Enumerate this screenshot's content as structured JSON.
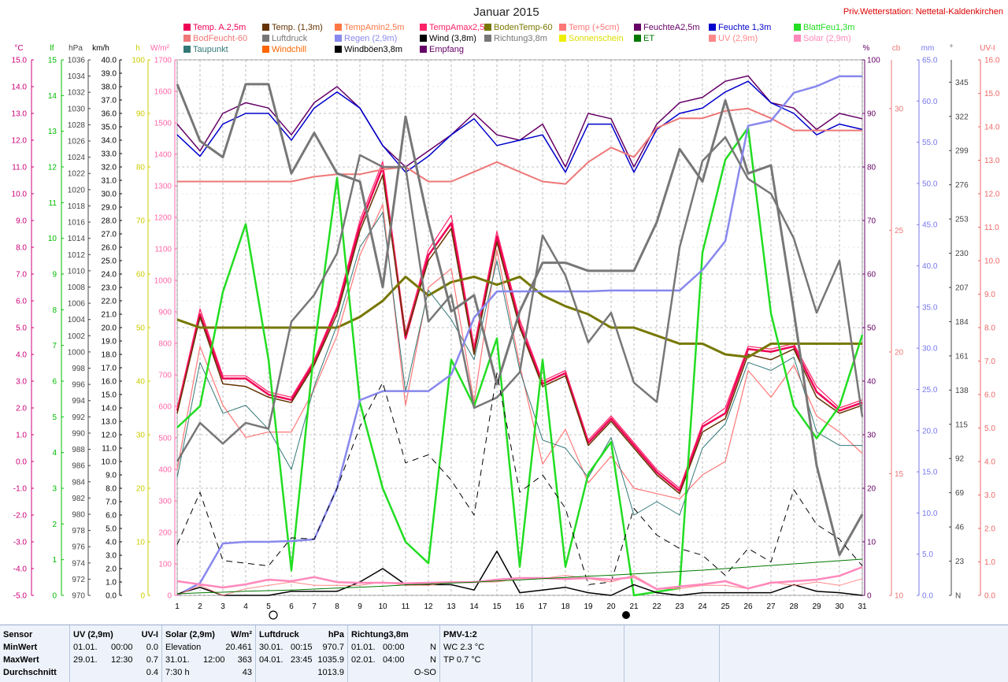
{
  "chart_data": {
    "type": "line",
    "title": "Januar 2015",
    "station": "Priv.Wetterstation: Nettetal-Kaldenkirchen",
    "x": [
      1,
      2,
      3,
      4,
      5,
      6,
      7,
      8,
      9,
      10,
      11,
      12,
      13,
      14,
      15,
      16,
      17,
      18,
      19,
      20,
      21,
      22,
      23,
      24,
      25,
      26,
      27,
      28,
      29,
      30,
      31
    ],
    "xlim": [
      1,
      31
    ],
    "axes": [
      {
        "id": "c",
        "unit": "°C",
        "color": "#cc0077",
        "min": -5,
        "max": 15,
        "ticks": [
          "-5.0",
          "-4.0",
          "-3.0",
          "-2.0",
          "-1.0",
          "0.0",
          "1.0",
          "2.0",
          "3.0",
          "4.0",
          "5.0",
          "6.0",
          "7.0",
          "8.0",
          "9.0",
          "10.0",
          "11.0",
          "12.0",
          "13.0",
          "14.0",
          "15.0"
        ]
      },
      {
        "id": "lf",
        "unit": "lf",
        "color": "#00bb00",
        "min": 0,
        "max": 15,
        "ticks": [
          "0",
          "1",
          "2",
          "3",
          "4",
          "5",
          "6",
          "7",
          "8",
          "9",
          "10",
          "11",
          "12",
          "13",
          "14",
          "15"
        ]
      },
      {
        "id": "hpa",
        "unit": "hPa",
        "color": "#444444",
        "min": 970,
        "max": 1036,
        "ticks": [
          "970",
          "972",
          "974",
          "976",
          "978",
          "980",
          "982",
          "984",
          "986",
          "988",
          "990",
          "992",
          "994",
          "996",
          "998",
          "1000",
          "1002",
          "1004",
          "1006",
          "1008",
          "1010",
          "1012",
          "1014",
          "1016",
          "1018",
          "1020",
          "1022",
          "1024",
          "1026",
          "1028",
          "1030",
          "1032",
          "1034",
          "1036"
        ]
      },
      {
        "id": "kmh",
        "unit": "km/h",
        "color": "#000000",
        "min": 0,
        "max": 40,
        "ticks": [
          "0.0",
          "1.0",
          "2.0",
          "3.0",
          "4.0",
          "5.0",
          "6.0",
          "7.0",
          "8.0",
          "9.0",
          "10.0",
          "11.0",
          "12.0",
          "13.0",
          "14.0",
          "15.0",
          "16.0",
          "17.0",
          "18.0",
          "19.0",
          "20.0",
          "21.0",
          "22.0",
          "23.0",
          "24.0",
          "25.0",
          "26.0",
          "27.0",
          "28.0",
          "29.0",
          "30.0",
          "31.0",
          "32.0",
          "33.0",
          "34.0",
          "35.0",
          "36.0",
          "37.0",
          "38.0",
          "39.0",
          "40.0"
        ]
      },
      {
        "id": "h",
        "unit": "h",
        "color": "#cccc00",
        "min": 0,
        "max": 100,
        "ticks": [
          "0",
          "10",
          "20",
          "30",
          "40",
          "50",
          "60",
          "70",
          "80",
          "90",
          "100"
        ]
      },
      {
        "id": "wm2",
        "unit": "W/m²",
        "color": "#ff66aa",
        "min": 0,
        "max": 1700,
        "ticks": [
          "0",
          "100",
          "200",
          "300",
          "400",
          "500",
          "600",
          "700",
          "800",
          "900",
          "1000",
          "1100",
          "1200",
          "1300",
          "1400",
          "1500",
          "1600",
          "1700"
        ]
      },
      {
        "id": "pct",
        "unit": "%",
        "color": "#660066",
        "min": 0,
        "max": 100,
        "ticks": [
          "0",
          "10",
          "20",
          "30",
          "40",
          "50",
          "60",
          "70",
          "80",
          "90",
          "100"
        ]
      },
      {
        "id": "cb",
        "unit": "cb",
        "color": "#ee7777",
        "min": 10,
        "max": 32,
        "ticks": [
          "10",
          "15",
          "20",
          "25",
          "30"
        ]
      },
      {
        "id": "mm",
        "unit": "mm",
        "color": "#7777ee",
        "min": 0,
        "max": 65,
        "ticks": [
          "0.0",
          "5.0",
          "10.0",
          "15.0",
          "20.0",
          "25.0",
          "30.0",
          "35.0",
          "40.0",
          "45.0",
          "50.0",
          "55.0",
          "60.0",
          "65.0"
        ]
      },
      {
        "id": "deg",
        "unit": "°",
        "color": "#444444",
        "min": 0,
        "max": 360,
        "ticks": [
          "N",
          "23",
          "46",
          "69",
          "92",
          "115",
          "138",
          "161",
          "184",
          "207",
          "230",
          "253",
          "276",
          "299",
          "322",
          "345"
        ]
      },
      {
        "id": "uv",
        "unit": "UV-I",
        "color": "#ee6666",
        "min": 0,
        "max": 16,
        "ticks": [
          "0.0",
          "1.0",
          "2.0",
          "3.0",
          "4.0",
          "5.0",
          "6.0",
          "7.0",
          "8.0",
          "9.0",
          "10.0",
          "11.0",
          "12.0",
          "13.0",
          "14.0",
          "15.0",
          "16.0"
        ]
      }
    ],
    "legend": [
      {
        "name": "Temp. A.2,5m",
        "color": "#ee0055"
      },
      {
        "name": "Temp. (1,3m)",
        "color": "#663300"
      },
      {
        "name": "TempAmin2,5m",
        "color": "#ff7744"
      },
      {
        "name": "TempAmax2,5m",
        "color": "#ff2266"
      },
      {
        "name": "BodenTemp-60",
        "color": "#777700"
      },
      {
        "name": "Temp (+5cm)",
        "color": "#ff7777"
      },
      {
        "name": "FeuchteA2,5m",
        "color": "#660066"
      },
      {
        "name": "Feuchte 1,3m",
        "color": "#0000cc"
      },
      {
        "name": "BlattFeu1,3m",
        "color": "#22dd22"
      },
      {
        "name": "BodFeucht-60",
        "color": "#ee7777"
      },
      {
        "name": "Luftdruck",
        "color": "#777777"
      },
      {
        "name": "Regen (2,9m)",
        "color": "#8888ee"
      },
      {
        "name": "Wind (3,8m)",
        "color": "#000000"
      },
      {
        "name": "Richtung3,8m",
        "color": "#777777"
      },
      {
        "name": "Sonnenschein",
        "color": "#eeee00"
      },
      {
        "name": "ET",
        "color": "#007700"
      },
      {
        "name": "UV (2,9m)",
        "color": "#ff8888"
      },
      {
        "name": "Solar (2,9m)",
        "color": "#ff88bb"
      },
      {
        "name": "Taupunkt",
        "color": "#337777"
      },
      {
        "name": "Windchill",
        "color": "#ff6600"
      },
      {
        "name": "Windböen3,8m",
        "color": "#000000"
      },
      {
        "name": "Empfang",
        "color": "#660066"
      }
    ],
    "series": [
      {
        "id": "tempA",
        "axis": "c",
        "color": "#ee0055",
        "width": 2.5,
        "values": [
          1.9,
          5.5,
          3.1,
          3.1,
          2.5,
          2.3,
          3.7,
          5.7,
          8.8,
          11.0,
          4.6,
          7.7,
          8.9,
          4.1,
          8.4,
          5.1,
          2.9,
          3.3,
          0.7,
          1.6,
          0.6,
          -0.4,
          -1.1,
          1.3,
          1.8,
          4.2,
          4.1,
          4.3,
          2.6,
          1.9,
          2.2
        ]
      },
      {
        "id": "tempAmax",
        "axis": "c",
        "color": "#ff2266",
        "width": 1.2,
        "values": [
          2.0,
          5.7,
          3.2,
          3.2,
          2.6,
          2.4,
          3.8,
          5.8,
          9.0,
          11.2,
          4.8,
          7.9,
          9.2,
          4.3,
          8.6,
          5.3,
          3.0,
          3.4,
          0.8,
          1.7,
          0.7,
          -0.3,
          -1.0,
          1.4,
          2.0,
          4.3,
          4.2,
          4.4,
          2.8,
          2.0,
          2.3
        ]
      },
      {
        "id": "temp13",
        "axis": "c",
        "color": "#663300",
        "width": 1.5,
        "values": [
          1.8,
          5.4,
          2.9,
          2.8,
          2.4,
          2.2,
          3.6,
          5.5,
          8.6,
          10.7,
          4.7,
          7.5,
          8.7,
          4.0,
          8.2,
          5.0,
          2.8,
          3.2,
          0.6,
          1.5,
          0.5,
          -0.5,
          -1.2,
          1.1,
          1.6,
          4.0,
          3.8,
          4.2,
          2.4,
          1.8,
          2.1
        ]
      },
      {
        "id": "bodenTemp",
        "axis": "c",
        "color": "#777700",
        "width": 3,
        "values": [
          5.3,
          5.0,
          5.0,
          5.0,
          5.0,
          5.0,
          5.0,
          5.0,
          5.4,
          6.0,
          6.9,
          6.2,
          6.7,
          6.9,
          6.6,
          6.9,
          6.2,
          5.8,
          5.5,
          5.0,
          5.0,
          4.7,
          4.4,
          4.4,
          4.0,
          3.9,
          4.4,
          4.4,
          4.4,
          4.4,
          4.4
        ]
      },
      {
        "id": "temp5cm",
        "axis": "c",
        "color": "#ff7777",
        "width": 1.2,
        "values": [
          -0.3,
          4.3,
          2.1,
          0.9,
          1.1,
          1.1,
          2.7,
          4.7,
          7.7,
          9.6,
          2.1,
          6.5,
          7.2,
          2.2,
          7.9,
          3.6,
          -0.1,
          1.2,
          -0.8,
          0.2,
          -1.0,
          -1.2,
          -1.4,
          -0.5,
          0.0,
          3.4,
          2.4,
          3.6,
          1.7,
          1.1,
          0.3
        ]
      },
      {
        "id": "taupunkt",
        "axis": "c",
        "color": "#337777",
        "width": 1,
        "values": [
          -0.6,
          3.7,
          1.8,
          2.1,
          1.2,
          -0.3,
          2.8,
          5.1,
          8.0,
          9.3,
          2.6,
          6.4,
          5.3,
          3.8,
          7.5,
          3.4,
          0.8,
          0.5,
          -0.6,
          0.9,
          -2.0,
          -1.5,
          -2.0,
          0.5,
          1.4,
          3.7,
          3.4,
          3.9,
          1.1,
          0.6,
          0.6
        ]
      },
      {
        "id": "feuchteA",
        "axis": "pct",
        "color": "#660066",
        "width": 1.5,
        "values": [
          88,
          83,
          90,
          92,
          91,
          86,
          92,
          95,
          91,
          84,
          80,
          83,
          86,
          90,
          86,
          85,
          88,
          80,
          90,
          89,
          80,
          88,
          92,
          93,
          96,
          97,
          92,
          91,
          87,
          90,
          89
        ]
      },
      {
        "id": "feuchte13",
        "axis": "pct",
        "color": "#0000cc",
        "width": 1.5,
        "values": [
          86,
          82,
          88,
          90,
          90,
          85,
          91,
          94,
          91,
          84,
          79,
          82,
          86,
          89,
          84,
          85,
          86,
          79,
          88,
          88,
          79,
          87,
          90,
          91,
          94,
          96,
          92,
          90,
          86,
          88,
          87
        ]
      },
      {
        "id": "blattFeu",
        "axis": "lf",
        "color": "#22dd22",
        "width": 2.5,
        "values": [
          4.7,
          5.3,
          8.5,
          10.4,
          6.6,
          0.7,
          6.9,
          11.7,
          5.4,
          3.0,
          1.5,
          0.9,
          6.6,
          5.3,
          7.2,
          0.8,
          6.6,
          0.8,
          3.4,
          4.3,
          0,
          0.1,
          0.2,
          9.6,
          12.2,
          13.1,
          7.9,
          5.3,
          4.4,
          5.3,
          7.3
        ]
      },
      {
        "id": "bodFeucht",
        "axis": "cb",
        "color": "#ee7777",
        "width": 2,
        "values": [
          27.0,
          27.0,
          27.0,
          27.0,
          27.0,
          27.0,
          27.2,
          27.3,
          27.3,
          27.5,
          27.6,
          27.0,
          27.0,
          27.4,
          27.8,
          27.4,
          27.0,
          26.9,
          27.8,
          28.4,
          28.0,
          29.2,
          29.6,
          29.6,
          29.9,
          30.0,
          29.6,
          29.1,
          29.1,
          29.1,
          29.1
        ]
      },
      {
        "id": "luftdruck",
        "axis": "hpa",
        "color": "#777777",
        "width": 3,
        "values": [
          1033,
          1026,
          1024,
          1033,
          1033,
          1022,
          1027,
          1022,
          1021,
          1008,
          1029,
          1016,
          1005,
          1007,
          996,
          1005,
          1011,
          1011,
          1010,
          1010,
          1010,
          1016,
          1025,
          1021,
          1031,
          1022,
          1023,
          1005,
          986,
          975,
          980
        ]
      },
      {
        "id": "regen",
        "axis": "mm",
        "color": "#8888ee",
        "width": 2.5,
        "values": [
          0.0,
          1.5,
          6.3,
          6.5,
          6.5,
          6.6,
          6.8,
          13.0,
          23.7,
          24.8,
          24.8,
          24.8,
          26.8,
          33.7,
          36.9,
          36.9,
          36.9,
          36.9,
          36.9,
          37.0,
          37.0,
          37.0,
          37.0,
          39.5,
          43.0,
          57.0,
          57.6,
          61.0,
          61.8,
          63.0,
          63.0
        ]
      },
      {
        "id": "richtung",
        "axis": "deg",
        "color": "#777777",
        "width": 2.5,
        "values": [
          90,
          116,
          102,
          116,
          112,
          184,
          202,
          230,
          296,
          288,
          288,
          184,
          202,
          126,
          133,
          150,
          242,
          215,
          170,
          190,
          143,
          130,
          234,
          292,
          308,
          280,
          270,
          240,
          190,
          225,
          120
        ]
      },
      {
        "id": "wind",
        "axis": "kmh",
        "color": "#000000",
        "width": 1.5,
        "values": [
          0.1,
          0.6,
          0.0,
          0.0,
          0.0,
          0.3,
          0.3,
          0.3,
          1.0,
          2.0,
          0.8,
          0.8,
          0.8,
          0.4,
          3.3,
          0.2,
          0.4,
          0.6,
          0.2,
          0.0,
          0.8,
          0.2,
          0.0,
          0.2,
          0.2,
          0.2,
          0.2,
          0.8,
          0.3,
          0.2,
          0.0
        ]
      },
      {
        "id": "boeen",
        "axis": "kmh",
        "color": "#000000",
        "width": 1,
        "dash": "8,6",
        "values": [
          3.8,
          7.7,
          2.6,
          2.4,
          2.2,
          4.3,
          4.2,
          8.0,
          12.6,
          15.9,
          9.9,
          10.5,
          8.6,
          6.0,
          16.6,
          7.7,
          9.0,
          6.5,
          0.8,
          1.0,
          6.5,
          4.5,
          3.5,
          3.0,
          1.5,
          3.5,
          2.5,
          7.9,
          5.3,
          4.2,
          2.2
        ]
      },
      {
        "id": "uvi",
        "axis": "uv",
        "color": "#ff8888",
        "width": 1,
        "values": [
          0.0,
          0.3,
          0.0,
          0.2,
          0.3,
          0.4,
          0.3,
          0.3,
          0.3,
          0.4,
          0.3,
          0.3,
          0.4,
          0.4,
          0.4,
          0.5,
          0.5,
          0.6,
          0.5,
          0.4,
          0.6,
          0.2,
          0.2,
          0.3,
          0.3,
          0.2,
          0.4,
          0.3,
          0.4,
          0.3,
          0.5
        ]
      },
      {
        "id": "solar",
        "axis": "wm2",
        "color": "#ff88bb",
        "width": 2.5,
        "values": [
          45,
          35,
          25,
          35,
          50,
          45,
          58,
          42,
          40,
          40,
          38,
          40,
          42,
          42,
          50,
          55,
          55,
          52,
          55,
          50,
          58,
          20,
          28,
          35,
          45,
          22,
          40,
          45,
          50,
          62,
          90
        ]
      },
      {
        "id": "et",
        "axis": "wm2",
        "color": "#007700",
        "width": 1,
        "values": [
          5,
          8,
          10,
          13,
          15,
          17,
          20,
          23,
          26,
          29,
          33,
          36,
          39,
          42,
          46,
          49,
          53,
          57,
          61,
          64,
          68,
          72,
          76,
          80,
          85,
          90,
          95,
          100,
          105,
          110,
          115
        ]
      }
    ]
  },
  "footer": {
    "sensor": {
      "title": "Sensor",
      "rows": [
        "MinWert",
        "MaxWert",
        "Durchschnitt"
      ]
    },
    "uv": {
      "title": "UV (2,9m)",
      "unit": "UV-I",
      "rows": [
        [
          "01.01.",
          "00:00",
          "0.0"
        ],
        [
          "29.01.",
          "12:30",
          "0.7"
        ],
        [
          "",
          "",
          "0.4"
        ]
      ]
    },
    "solar": {
      "title": "Solar (2,9m)",
      "unit": "W/m²",
      "rows": [
        [
          "Elevation",
          "",
          "20.461"
        ],
        [
          "31.01.",
          "12:00",
          "363"
        ],
        [
          "7:30 h",
          "",
          "43"
        ]
      ]
    },
    "luftdruck": {
      "title": "Luftdruck",
      "unit": "hPa",
      "rows": [
        [
          "30.01.",
          "00:15",
          "970.7"
        ],
        [
          "04.01.",
          "23:45",
          "1035.9"
        ],
        [
          "",
          "",
          "1013.9"
        ]
      ]
    },
    "richtung": {
      "title": "Richtung3,8m",
      "unit": "",
      "rows": [
        [
          "01.01.",
          "00:00",
          "N"
        ],
        [
          "02.01.",
          "04:00",
          "N"
        ],
        [
          "",
          "",
          "O-SO"
        ]
      ]
    },
    "pmv": {
      "title": "PMV-1:2",
      "rows": [
        "WC 2.3 °C",
        "TP 0.7 °C"
      ]
    }
  }
}
